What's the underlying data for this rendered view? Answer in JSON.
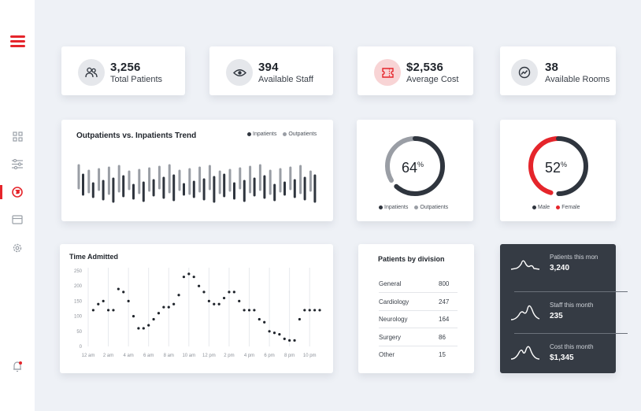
{
  "stats": [
    {
      "value": "3,256",
      "label": "Total Patients",
      "icon": "users-icon"
    },
    {
      "value": "394",
      "label": "Available Staff",
      "icon": "eye-icon"
    },
    {
      "value": "$2,536",
      "label": "Average Cost",
      "icon": "ticket-icon"
    },
    {
      "value": "38",
      "label": "Available Rooms",
      "icon": "trend-icon"
    }
  ],
  "trend": {
    "title": "Outpatients vs. Inpatients Trend",
    "legend_in": "Inpatients",
    "legend_out": "Outpatients"
  },
  "donut1": {
    "value": "64",
    "unit": "%",
    "fraction": 0.64,
    "legend_a": "Inpatients",
    "legend_b": "Outpatients"
  },
  "donut2": {
    "value": "52",
    "unit": "%",
    "fraction": 0.52,
    "legend_a": "Male",
    "legend_b": "Female"
  },
  "division": {
    "title": "Patients by division",
    "rows": [
      {
        "name": "General",
        "value": "800"
      },
      {
        "name": "Cardiology",
        "value": "247"
      },
      {
        "name": "Neurology",
        "value": "164"
      },
      {
        "name": "Surgery",
        "value": "86"
      },
      {
        "name": "Other",
        "value": "15"
      }
    ]
  },
  "summary": [
    {
      "label": "Patients this mon",
      "value": "3,240"
    },
    {
      "label": "Staff this month",
      "value": "235"
    },
    {
      "label": "Cost this month",
      "value": "$1,345"
    }
  ],
  "colors": {
    "accent": "#e5252b",
    "dark": "#2f353e",
    "gray": "#9a9ea5"
  },
  "chart_data": {
    "type": "scatter",
    "title": "Time Admitted",
    "xlabel": "",
    "ylabel": "",
    "ylim": [
      0,
      250
    ],
    "yticks": [
      "0",
      "50",
      "100",
      "150",
      "200",
      "250"
    ],
    "xticks": [
      "12 am",
      "2 am",
      "4 am",
      "6 am",
      "8 am",
      "10 am",
      "12 pm",
      "2 pm",
      "4 pm",
      "6 pm",
      "8 pm",
      "10 pm"
    ],
    "x": [
      0.5,
      1,
      1.5,
      2,
      2.5,
      3,
      3.5,
      4,
      4.5,
      5,
      5.5,
      6,
      6.5,
      7,
      7.5,
      8,
      8.5,
      9,
      9.5,
      10,
      10.5,
      11,
      11.5,
      12,
      12.5,
      13,
      13.5,
      14,
      14.5,
      15,
      15.5,
      16,
      16.5,
      17,
      17.5,
      18,
      18.5,
      19,
      19.5,
      20,
      20.5,
      21,
      21.5,
      22,
      22.5,
      23
    ],
    "y": [
      120,
      140,
      150,
      120,
      120,
      190,
      180,
      150,
      100,
      60,
      60,
      70,
      90,
      110,
      130,
      130,
      140,
      170,
      230,
      240,
      230,
      200,
      180,
      150,
      140,
      140,
      160,
      180,
      180,
      150,
      120,
      120,
      120,
      90,
      80,
      50,
      45,
      40,
      25,
      20,
      20,
      90,
      120,
      120,
      120,
      120
    ],
    "grid": true
  }
}
